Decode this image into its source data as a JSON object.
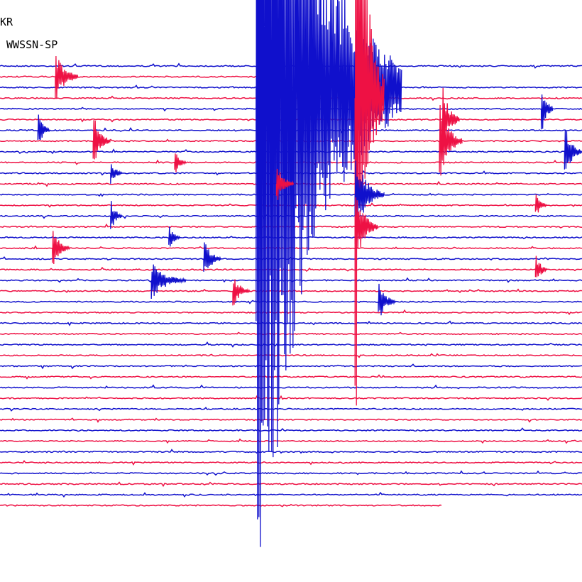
{
  "header": {
    "station": "KR",
    "instrument": "WWSSN-SP"
  },
  "colors": {
    "background": "#ffffff",
    "trace_a": "#1010cc",
    "trace_b": "#ee1144",
    "text": "#000000"
  },
  "chart_data": {
    "type": "helicorder",
    "title": "",
    "traces_shown": 42,
    "partial_first_trace": true,
    "partial_last_trace": true,
    "color_cycle": [
      "blue",
      "red"
    ],
    "grid": false,
    "legend": "none",
    "events": [
      {
        "trace": 1,
        "pos": 0.095,
        "amp": 40,
        "tail": 0.04,
        "mag": "small"
      },
      {
        "trace": 2,
        "pos": 0.44,
        "amp": 820,
        "tail": 0.25,
        "mag": "large"
      },
      {
        "trace": 3,
        "pos": 0.61,
        "amp": 500,
        "tail": 0.05,
        "mag": "medium"
      },
      {
        "trace": 4,
        "pos": 0.93,
        "amp": 40,
        "tail": 0.02,
        "mag": "small"
      },
      {
        "trace": 5,
        "pos": 0.76,
        "amp": 50,
        "tail": 0.03,
        "mag": "small"
      },
      {
        "trace": 6,
        "pos": 0.065,
        "amp": 30,
        "tail": 0.02,
        "mag": "small"
      },
      {
        "trace": 7,
        "pos": 0.16,
        "amp": 40,
        "tail": 0.03,
        "mag": "small"
      },
      {
        "trace": 7,
        "pos": 0.755,
        "amp": 60,
        "tail": 0.04,
        "mag": "medium"
      },
      {
        "trace": 8,
        "pos": 0.97,
        "amp": 40,
        "tail": 0.03,
        "mag": "small"
      },
      {
        "trace": 9,
        "pos": 0.3,
        "amp": 20,
        "tail": 0.02,
        "mag": "small"
      },
      {
        "trace": 10,
        "pos": 0.19,
        "amp": 20,
        "tail": 0.02,
        "mag": "small"
      },
      {
        "trace": 11,
        "pos": 0.475,
        "amp": 30,
        "tail": 0.03,
        "mag": "small"
      },
      {
        "trace": 12,
        "pos": 0.61,
        "amp": 60,
        "tail": 0.05,
        "mag": "medium"
      },
      {
        "trace": 13,
        "pos": 0.92,
        "amp": 20,
        "tail": 0.02,
        "mag": "small"
      },
      {
        "trace": 14,
        "pos": 0.19,
        "amp": 25,
        "tail": 0.02,
        "mag": "small"
      },
      {
        "trace": 15,
        "pos": 0.61,
        "amp": 60,
        "tail": 0.04,
        "mag": "medium"
      },
      {
        "trace": 16,
        "pos": 0.29,
        "amp": 20,
        "tail": 0.02,
        "mag": "small"
      },
      {
        "trace": 17,
        "pos": 0.09,
        "amp": 30,
        "tail": 0.03,
        "mag": "small"
      },
      {
        "trace": 18,
        "pos": 0.35,
        "amp": 30,
        "tail": 0.03,
        "mag": "small"
      },
      {
        "trace": 19,
        "pos": 0.92,
        "amp": 25,
        "tail": 0.02,
        "mag": "small"
      },
      {
        "trace": 20,
        "pos": 0.26,
        "amp": 30,
        "tail": 0.06,
        "mag": "medium"
      },
      {
        "trace": 21,
        "pos": 0.4,
        "amp": 25,
        "tail": 0.03,
        "mag": "small"
      },
      {
        "trace": 22,
        "pos": 0.65,
        "amp": 30,
        "tail": 0.03,
        "mag": "small"
      }
    ]
  }
}
